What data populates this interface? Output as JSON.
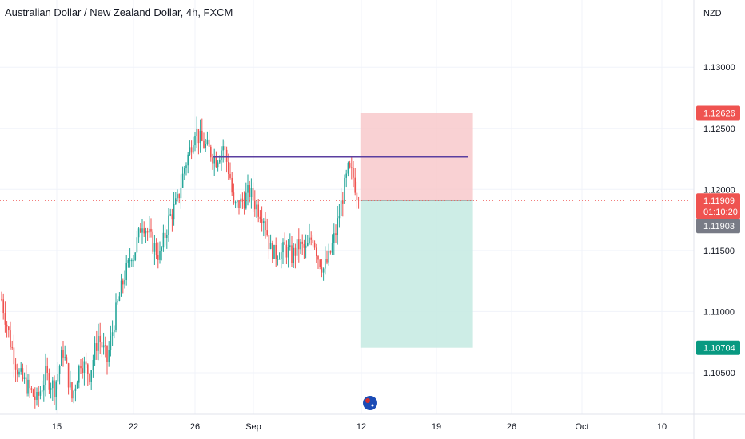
{
  "chart_data": {
    "type": "candlestick",
    "title": "Australian Dollar / New Zealand Dollar, 4h, FXCM",
    "currency": "NZD",
    "ylim": [
      1.1016,
      1.1355
    ],
    "y_ticks": [
      "1.10500",
      "1.11000",
      "1.11500",
      "1.12000",
      "1.12500",
      "1.13000"
    ],
    "x_ticks": [
      "15",
      "22",
      "26",
      "Sep",
      "12",
      "19",
      "26",
      "Oct",
      "10"
    ],
    "colors": {
      "up": "#26a69a",
      "down": "#ef5350",
      "line": "#5b3fa0",
      "stop_zone": "#f7c5c8",
      "target_zone": "#c8ebe3"
    },
    "trend_path": [
      [
        0,
        1.111
      ],
      [
        5,
        1.1075
      ],
      [
        10,
        1.1048
      ],
      [
        15,
        1.1038
      ],
      [
        20,
        1.1027
      ],
      [
        25,
        1.1048
      ],
      [
        30,
        1.1038
      ],
      [
        35,
        1.1068
      ],
      [
        40,
        1.1029
      ],
      [
        45,
        1.106
      ],
      [
        50,
        1.1049
      ],
      [
        55,
        1.108
      ],
      [
        60,
        1.106
      ],
      [
        65,
        1.11
      ],
      [
        70,
        1.113
      ],
      [
        75,
        1.1145
      ],
      [
        80,
        1.1175
      ],
      [
        85,
        1.1158
      ],
      [
        90,
        1.1145
      ],
      [
        95,
        1.1175
      ],
      [
        100,
        1.119
      ],
      [
        104,
        1.1218
      ],
      [
        107,
        1.1232
      ],
      [
        110,
        1.125
      ],
      [
        113,
        1.124
      ],
      [
        118,
        1.1232
      ],
      [
        122,
        1.1225
      ],
      [
        126,
        1.1236
      ],
      [
        130,
        1.121
      ],
      [
        132,
        1.1185
      ],
      [
        137,
        1.119
      ],
      [
        141,
        1.1198
      ],
      [
        145,
        1.1186
      ],
      [
        149,
        1.1178
      ],
      [
        153,
        1.115
      ],
      [
        157,
        1.1143
      ],
      [
        161,
        1.1152
      ],
      [
        165,
        1.1145
      ],
      [
        169,
        1.1154
      ],
      [
        173,
        1.115
      ],
      [
        177,
        1.1162
      ],
      [
        180,
        1.1145
      ],
      [
        183,
        1.1135
      ],
      [
        186,
        1.1143
      ],
      [
        190,
        1.1165
      ],
      [
        194,
        1.1195
      ],
      [
        197,
        1.1215
      ],
      [
        200,
        1.121
      ],
      [
        203,
        1.1191
      ]
    ],
    "ranges": [
      {
        "x0": 72,
        "x1": 82,
        "lo": 1.1142,
        "hi": 1.1168
      },
      {
        "x0": 124,
        "x1": 132,
        "lo": 1.1185,
        "hi": 1.124
      },
      {
        "x0": 150,
        "x1": 162,
        "lo": 1.1143,
        "hi": 1.1168
      }
    ],
    "horizontal_line": {
      "price": 1.12268,
      "x_start_day": 120,
      "x_end_day": 265
    },
    "position": {
      "entry": 1.11909,
      "stop": 1.12626,
      "target": 1.10704,
      "x_start_day": 204,
      "x_end_day": 268
    },
    "price_tags": [
      {
        "label": "1.12626",
        "color": "#ef5350"
      },
      {
        "label": "1.11909",
        "sublabel": "01:10:20",
        "color": "#ef5350"
      },
      {
        "label": "1.11903",
        "color": "#787b86"
      },
      {
        "label": "1.10704",
        "color": "#089981"
      }
    ],
    "event_marker": {
      "icon": "australia-flag-icon"
    }
  }
}
